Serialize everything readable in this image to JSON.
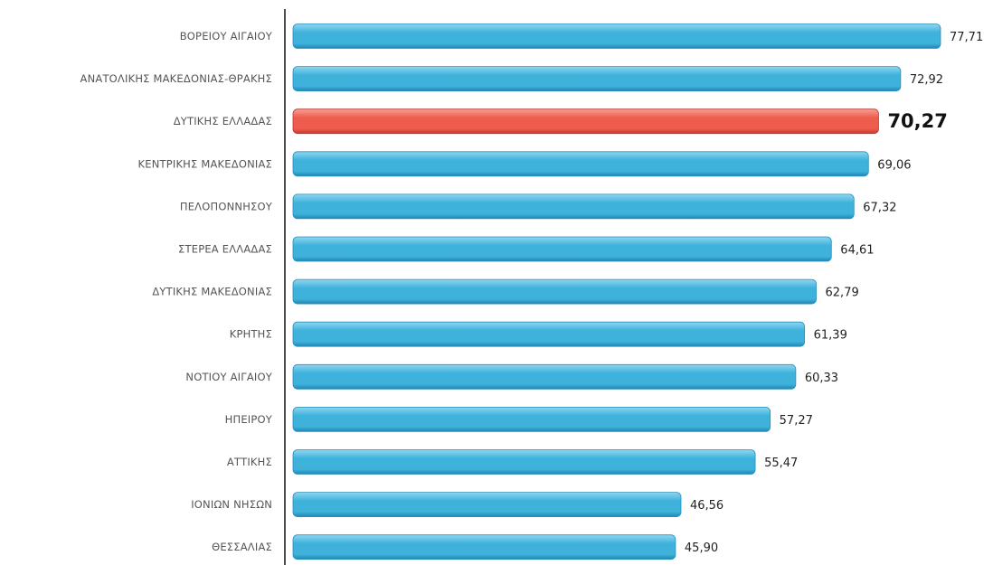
{
  "chart_data": {
    "type": "bar",
    "orientation": "horizontal",
    "title": "",
    "xlabel": "",
    "ylabel": "",
    "categories": [
      "ΒΟΡΕΙΟΥ ΑΙΓΑΙΟΥ",
      "ΑΝΑΤΟΛΙΚΗΣ ΜΑΚΕΔΟΝΙΑΣ-ΘΡΑΚΗΣ",
      "ΔΥΤΙΚΗΣ ΕΛΛΑΔΑΣ",
      "ΚΕΝΤΡΙΚΗΣ ΜΑΚΕΔΟΝΙΑΣ",
      "ΠΕΛΟΠΟΝΝΗΣΟΥ",
      "ΣΤΕΡΕΑ ΕΛΛΑΔΑΣ",
      "ΔΥΤΙΚΗΣ ΜΑΚΕΔΟΝΙΑΣ",
      "ΚΡΗΤΗΣ",
      "ΝΟΤΙΟΥ ΑΙΓΑΙΟΥ",
      "ΗΠΕΙΡΟΥ",
      "ΑΤΤΙΚΗΣ",
      "ΙΟΝΙΩΝ ΝΗΣΩΝ",
      "ΘΕΣΣΑΛΙΑΣ"
    ],
    "values": [
      77.71,
      72.92,
      70.27,
      69.06,
      67.32,
      64.61,
      62.79,
      61.39,
      60.33,
      57.27,
      55.47,
      46.56,
      45.9
    ],
    "value_labels": [
      "77,71",
      "72,92",
      "70,27",
      "69,06",
      "67,32",
      "64,61",
      "62,79",
      "61,39",
      "60,33",
      "57,27",
      "55,47",
      "46,56",
      "45,90"
    ],
    "highlight_index": 2,
    "xlim": [
      0,
      80
    ],
    "grid": false,
    "legend": "none",
    "colors": {
      "bar": "#3fb2dc",
      "bar_light": "#8fd6f0",
      "bar_dark": "#1f86b3",
      "highlight": "#ee5c4e",
      "highlight_light": "#f7a096",
      "highlight_dark": "#c8382c",
      "axis": "#222222"
    }
  }
}
